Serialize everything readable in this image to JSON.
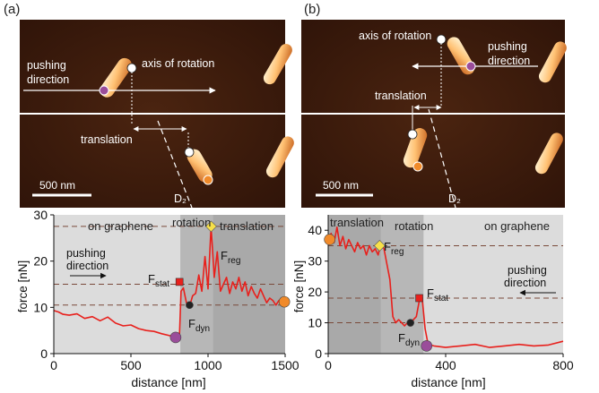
{
  "panels": {
    "a": {
      "letter": "(a)",
      "afm": {
        "pushing_direction_lines": [
          "pushing",
          "direction"
        ],
        "axis_of_rotation": "axis of rotation",
        "translation": "translation",
        "scale_bar": "500 nm",
        "d2": "D₂"
      },
      "plot": {
        "regions": [
          "on graphene",
          "rotation",
          "translation"
        ],
        "pushing_direction_lines": [
          "pushing",
          "direction"
        ],
        "f_stat": "F_stat",
        "f_dyn": "F_dyn",
        "f_reg": "F_reg",
        "ylabel": "force [nN]",
        "xlabel": "distance [nm]"
      }
    },
    "b": {
      "letter": "(b)",
      "afm": {
        "pushing_direction_lines": [
          "pushing",
          "direction"
        ],
        "axis_of_rotation": "axis of rotation",
        "translation": "translation",
        "scale_bar": "500 nm",
        "d2": "D₂"
      },
      "plot": {
        "regions": [
          "translation",
          "rotation",
          "on graphene"
        ],
        "pushing_direction_lines": [
          "pushing",
          "direction"
        ],
        "f_stat": "F_stat",
        "f_dyn": "F_dyn",
        "f_reg": "F_reg",
        "ylabel": "force [nN]",
        "xlabel": "distance [nm]"
      }
    }
  },
  "chart_data": [
    {
      "type": "line",
      "panel": "a",
      "xlabel": "distance [nm]",
      "ylabel": "force [nN]",
      "xlim": [
        0,
        1500
      ],
      "ylim": [
        0,
        30
      ],
      "xticks": [
        0,
        500,
        1000,
        1500
      ],
      "yticks": [
        0,
        10,
        20,
        30
      ],
      "regions": [
        {
          "label": "on graphene",
          "x": [
            0,
            820
          ],
          "color": "#dcdcdc"
        },
        {
          "label": "rotation",
          "x": [
            820,
            1030
          ],
          "color": "#b7b7b7"
        },
        {
          "label": "translation",
          "x": [
            1030,
            1500
          ],
          "color": "#a9a9a9"
        }
      ],
      "reference_lines": [
        27.5,
        15,
        10.5
      ],
      "series": [
        {
          "color": "#e8201c",
          "x": [
            0,
            30,
            60,
            100,
            150,
            200,
            250,
            300,
            350,
            400,
            450,
            500,
            550,
            600,
            650,
            700,
            750,
            800,
            815,
            825,
            840,
            860,
            880,
            900,
            920,
            940,
            960,
            980,
            1000,
            1020,
            1040,
            1060,
            1080,
            1100,
            1120,
            1140,
            1160,
            1180,
            1200,
            1220,
            1240,
            1260,
            1280,
            1300,
            1320,
            1340,
            1360,
            1380,
            1400,
            1420,
            1440,
            1460,
            1480,
            1500
          ],
          "values": [
            9.3,
            9.0,
            8.5,
            8.3,
            8.6,
            7.6,
            8.0,
            7.1,
            7.9,
            6.6,
            6.0,
            6.2,
            5.4,
            5.0,
            4.8,
            4.3,
            3.9,
            3.6,
            4.2,
            13.5,
            14.2,
            11.0,
            10.2,
            12.5,
            13.0,
            17.0,
            13.5,
            21.0,
            14.0,
            27.5,
            16.5,
            22.0,
            13.5,
            15.0,
            16.5,
            13.0,
            15.5,
            14.0,
            16.5,
            13.5,
            15.5,
            12.5,
            14.5,
            13.0,
            12.0,
            14.0,
            12.5,
            11.0,
            12.0,
            11.5,
            10.5,
            11.5,
            11.0,
            11.2
          ]
        }
      ],
      "markers": [
        {
          "label": "F_stat",
          "x": 815,
          "y": 15.5,
          "shape": "square",
          "color": "#e8201c"
        },
        {
          "label": "F_dyn",
          "x": 880,
          "y": 10.5,
          "shape": "circle",
          "color": "#222222"
        },
        {
          "label": "F_reg",
          "x": 1020,
          "y": 27.5,
          "shape": "diamond",
          "color": "#f7e04a"
        },
        {
          "label": "",
          "x": 790,
          "y": 3.5,
          "shape": "circle",
          "color": "#9a4d9a"
        },
        {
          "label": "",
          "x": 1495,
          "y": 11.2,
          "shape": "circle",
          "color": "#f08a2a"
        }
      ]
    },
    {
      "type": "line",
      "panel": "b",
      "xlabel": "distance [nm]",
      "ylabel": "force [nN]",
      "xlim": [
        0,
        800
      ],
      "ylim": [
        0,
        45
      ],
      "xticks": [
        0,
        400,
        800
      ],
      "yticks": [
        0,
        10,
        20,
        30,
        40
      ],
      "regions": [
        {
          "label": "translation",
          "x": [
            0,
            180
          ],
          "color": "#a9a9a9"
        },
        {
          "label": "rotation",
          "x": [
            180,
            325
          ],
          "color": "#b7b7b7"
        },
        {
          "label": "on graphene",
          "x": [
            325,
            800
          ],
          "color": "#dcdcdc"
        }
      ],
      "reference_lines": [
        35,
        18,
        10
      ],
      "series": [
        {
          "color": "#e8201c",
          "x": [
            0,
            10,
            20,
            30,
            40,
            50,
            60,
            70,
            80,
            90,
            100,
            110,
            120,
            130,
            140,
            150,
            160,
            170,
            180,
            190,
            200,
            210,
            220,
            230,
            240,
            250,
            260,
            270,
            280,
            290,
            300,
            310,
            320,
            330,
            340,
            360,
            400,
            450,
            500,
            550,
            600,
            650,
            700,
            750,
            800
          ],
          "values": [
            37,
            39,
            36,
            41,
            35,
            38,
            34,
            37,
            35,
            33,
            36,
            34,
            35,
            32,
            35,
            33,
            34,
            32,
            36,
            34,
            29,
            24,
            12,
            10,
            11,
            10,
            9,
            10,
            9,
            11,
            12,
            17,
            18,
            8,
            3,
            2.5,
            2,
            2.5,
            3,
            2,
            2.5,
            3,
            2.5,
            2.8,
            4
          ]
        }
      ],
      "markers": [
        {
          "label": "F_reg",
          "x": 175,
          "y": 35,
          "shape": "diamond",
          "color": "#f7e04a"
        },
        {
          "label": "F_stat",
          "x": 310,
          "y": 18,
          "shape": "square",
          "color": "#e8201c"
        },
        {
          "label": "F_dyn",
          "x": 280,
          "y": 10,
          "shape": "circle",
          "color": "#222222"
        },
        {
          "label": "",
          "x": 5,
          "y": 37,
          "shape": "circle",
          "color": "#f08a2a"
        },
        {
          "label": "",
          "x": 335,
          "y": 2.5,
          "shape": "circle",
          "color": "#9a4d9a"
        }
      ]
    }
  ]
}
